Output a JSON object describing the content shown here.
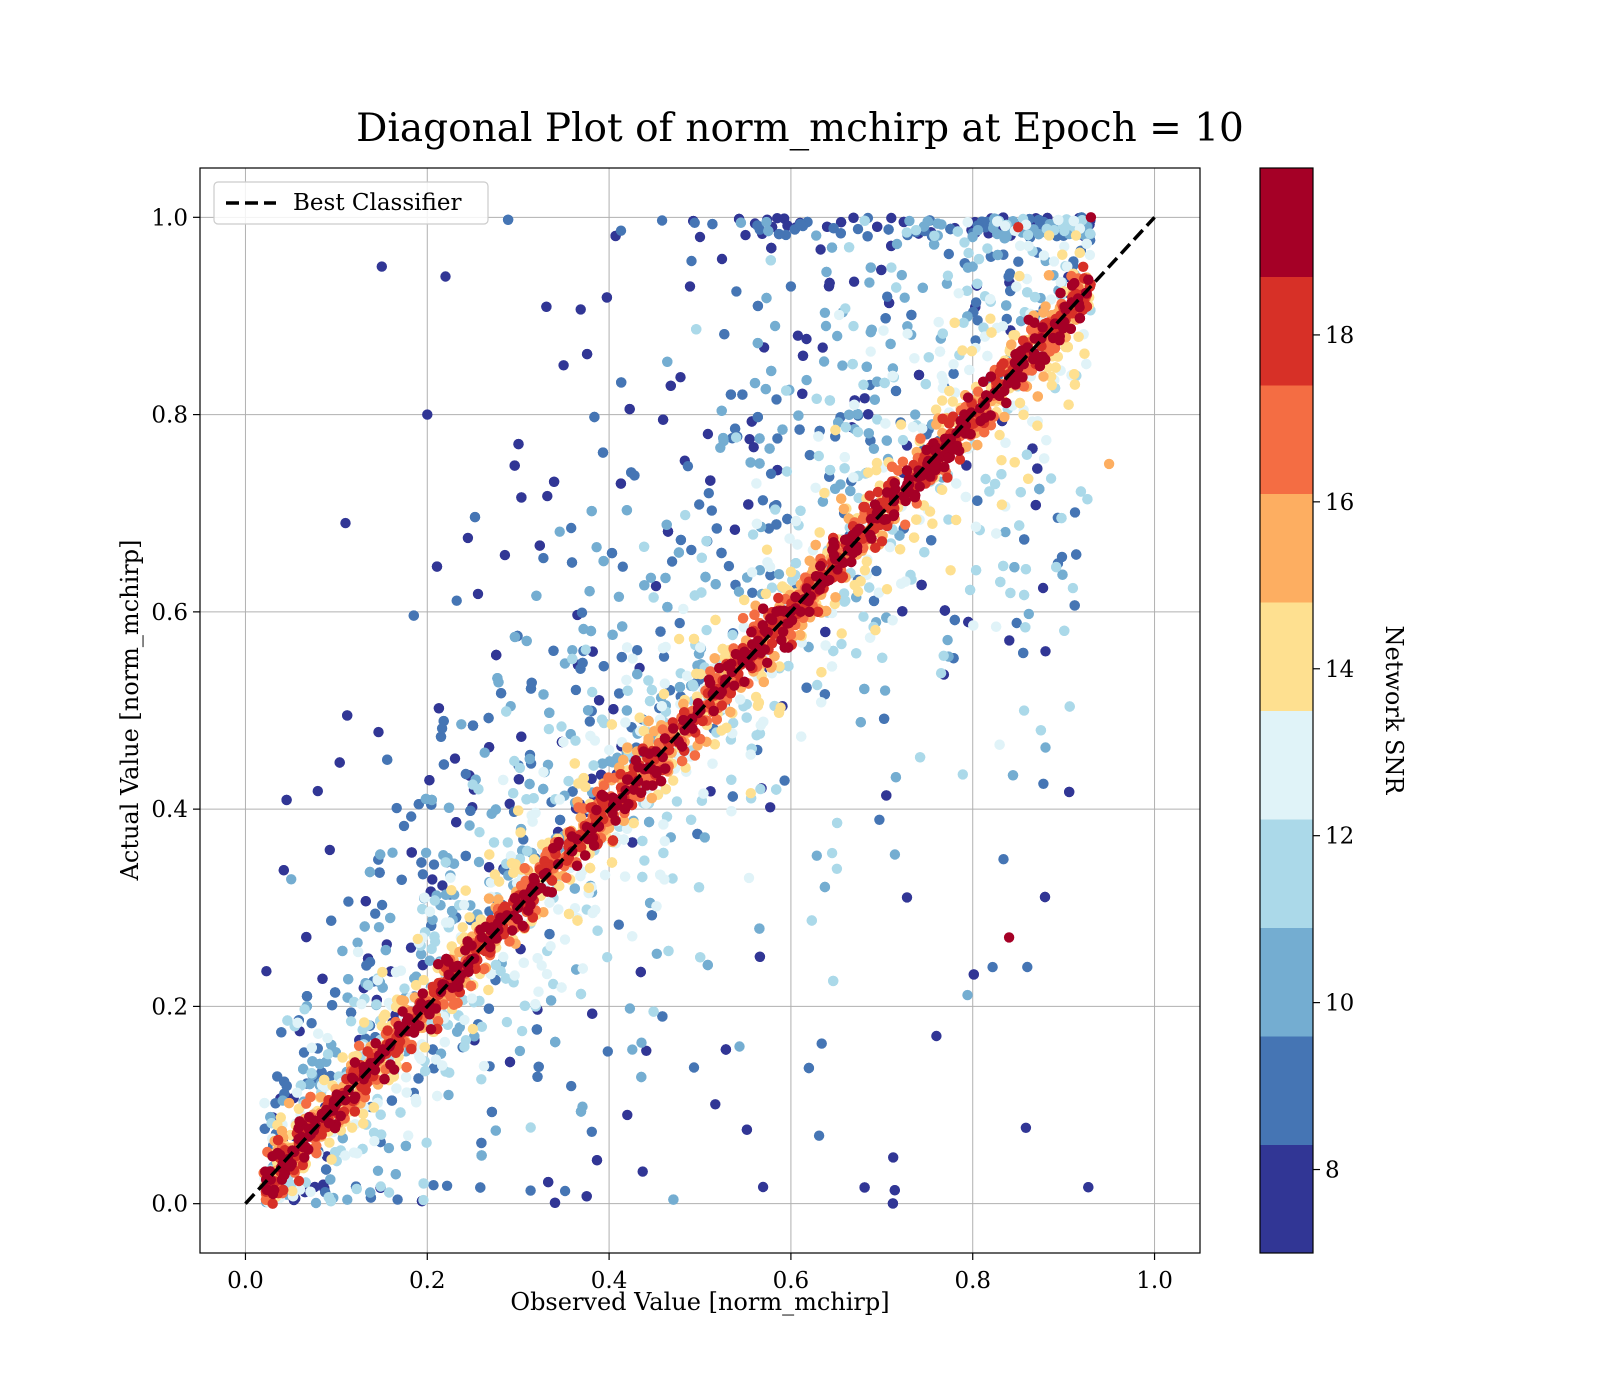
{
  "chart_data": {
    "type": "scatter",
    "title": "Diagonal Plot of norm_mchirp at Epoch = 10",
    "xlabel": "Observed Value [norm_mchirp]",
    "ylabel": "Actual Value [norm_mchirp]",
    "xlim": [
      -0.05,
      1.05
    ],
    "ylim": [
      -0.05,
      1.05
    ],
    "x_ticks": [
      "0.0",
      "0.2",
      "0.4",
      "0.6",
      "0.8",
      "1.0"
    ],
    "y_ticks": [
      "0.0",
      "0.2",
      "0.4",
      "0.6",
      "0.8",
      "1.0"
    ],
    "grid": true,
    "legend": {
      "position": "top-left",
      "entries": [
        "Best Classifier"
      ]
    },
    "reference_line": {
      "name": "Best Classifier",
      "x": [
        0.0,
        1.0
      ],
      "y": [
        0.0,
        1.0
      ],
      "style": "dashed",
      "color": "#000000"
    },
    "colorbar": {
      "label": "Network SNR",
      "range": [
        7,
        20
      ],
      "ticks": [
        "8",
        "10",
        "12",
        "14",
        "16",
        "18"
      ],
      "colors": [
        "#313695",
        "#4575b4",
        "#74add1",
        "#abd9e9",
        "#e0f3f8",
        "#fee090",
        "#fdae61",
        "#f46d43",
        "#d73027",
        "#a50026"
      ]
    },
    "scatter_description_points": [
      {
        "x": 0.15,
        "y": 0.95,
        "snr": 7.2
      },
      {
        "x": 0.22,
        "y": 0.94,
        "snr": 7.5
      },
      {
        "x": 0.5,
        "y": 0.98,
        "snr": 7.8
      },
      {
        "x": 0.11,
        "y": 0.69,
        "snr": 7.4
      },
      {
        "x": 0.2,
        "y": 0.8,
        "snr": 7.6
      },
      {
        "x": 0.35,
        "y": 0.85,
        "snr": 8.1
      },
      {
        "x": 0.6,
        "y": 0.93,
        "snr": 8.4
      },
      {
        "x": 0.8,
        "y": 0.95,
        "snr": 10.5
      },
      {
        "x": 0.85,
        "y": 0.99,
        "snr": 18.5
      },
      {
        "x": 0.93,
        "y": 1.0,
        "snr": 19.5
      },
      {
        "x": 0.5,
        "y": 0.5,
        "snr": 19.8
      },
      {
        "x": 0.3,
        "y": 0.3,
        "snr": 19.6
      },
      {
        "x": 0.75,
        "y": 0.75,
        "snr": 19.7
      },
      {
        "x": 0.42,
        "y": 0.09,
        "snr": 7.3
      },
      {
        "x": 0.76,
        "y": 0.17,
        "snr": 7.4
      },
      {
        "x": 0.84,
        "y": 0.27,
        "snr": 19.0
      },
      {
        "x": 0.86,
        "y": 0.24,
        "snr": 8.5
      },
      {
        "x": 0.88,
        "y": 0.56,
        "snr": 8.2
      },
      {
        "x": 0.95,
        "y": 0.75,
        "snr": 15.0
      },
      {
        "x": 0.03,
        "y": 0.0,
        "snr": 17.5
      }
    ]
  }
}
